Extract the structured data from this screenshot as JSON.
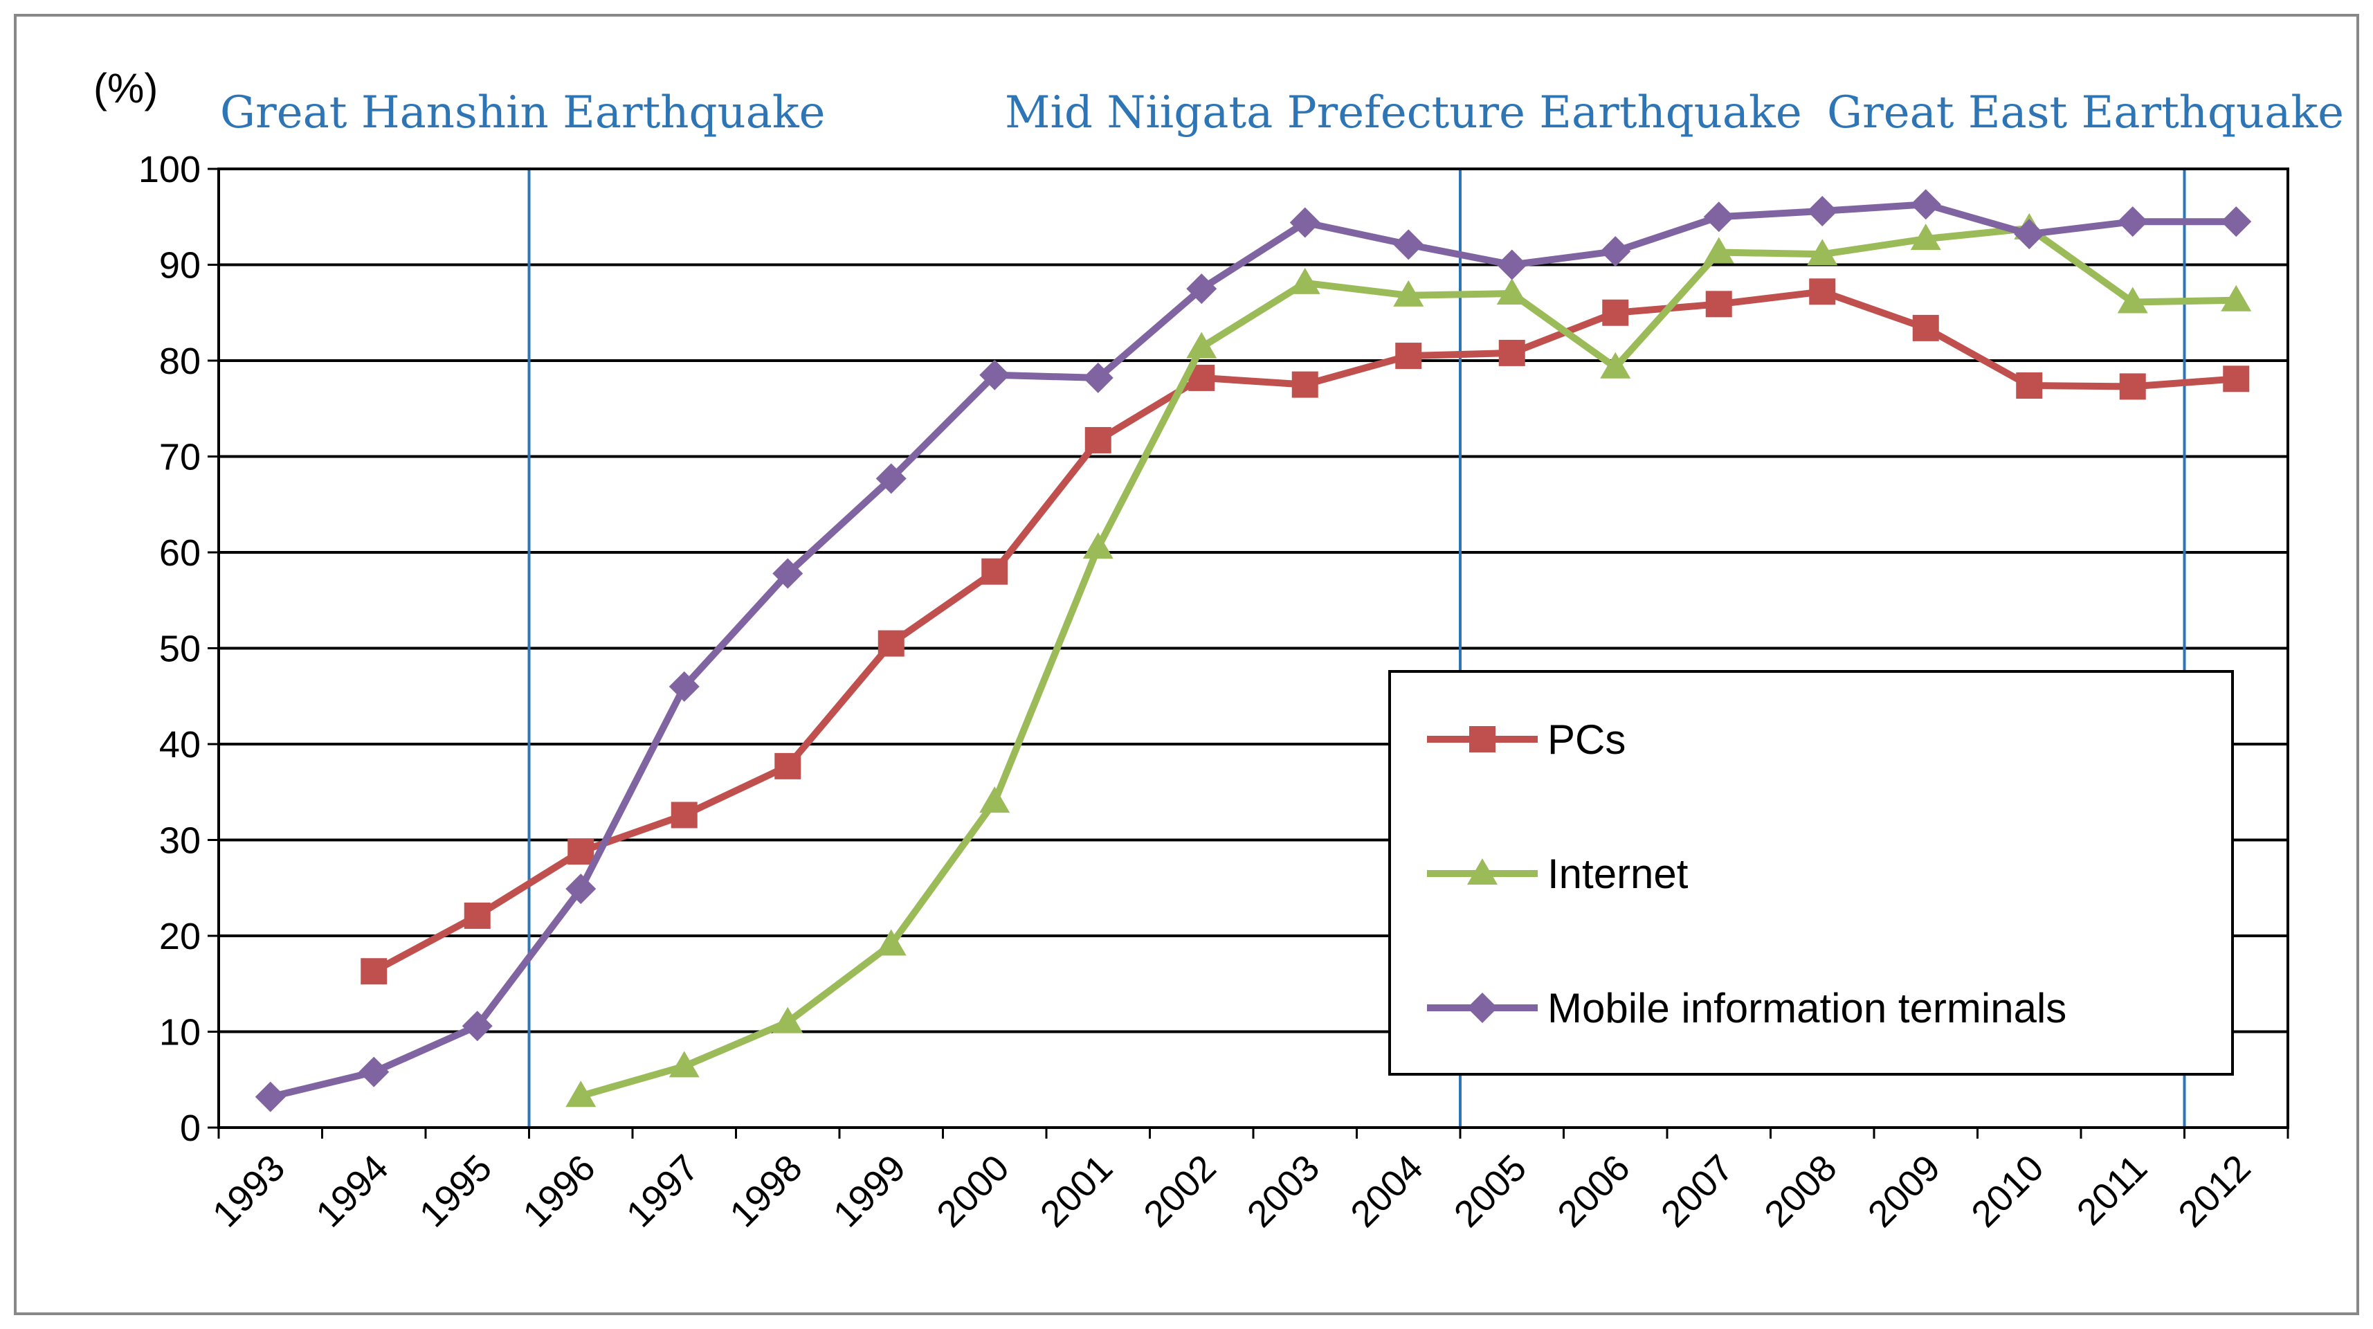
{
  "chart_data": {
    "type": "line",
    "unit_label": "(%)",
    "ylim": [
      0,
      100
    ],
    "yticks": [
      "0",
      "10",
      "20",
      "30",
      "40",
      "50",
      "60",
      "70",
      "80",
      "90",
      "100"
    ],
    "categories": [
      "1993",
      "1994",
      "1995",
      "1996",
      "1997",
      "1998",
      "1999",
      "2000",
      "2001",
      "2002",
      "2003",
      "2004",
      "2005",
      "2006",
      "2007",
      "2008",
      "2009",
      "2010",
      "2011",
      "2012"
    ],
    "events": [
      {
        "label": "Great Hanshin Earthquake",
        "year": "1995"
      },
      {
        "label": "Mid Niigata Prefecture Earthquake",
        "year": "2004"
      },
      {
        "label": "Great East Earthquake",
        "year": "2011"
      }
    ],
    "event_color": "#2E75B6",
    "grid": true,
    "legend_position": "bottom-right",
    "series": [
      {
        "name": "PCs",
        "marker": "square",
        "color": "#C0504D",
        "values": [
          null,
          16.3,
          22.1,
          28.8,
          32.6,
          37.7,
          50.5,
          58.0,
          71.7,
          78.2,
          77.5,
          80.5,
          80.8,
          85.0,
          85.9,
          87.2,
          83.4,
          77.4,
          77.3,
          78.1
        ]
      },
      {
        "name": "Internet",
        "marker": "triangle",
        "color": "#9BBB59",
        "values": [
          null,
          null,
          null,
          3.3,
          6.4,
          11.0,
          19.1,
          34.0,
          60.5,
          81.4,
          88.1,
          86.8,
          87.0,
          79.3,
          91.3,
          91.1,
          92.7,
          93.8,
          86.1,
          86.3
        ]
      },
      {
        "name": "Mobile information terminals",
        "marker": "diamond",
        "color": "#8064A2",
        "values": [
          3.2,
          5.8,
          10.6,
          24.9,
          46.0,
          57.8,
          67.7,
          78.5,
          78.2,
          87.5,
          94.4,
          92.1,
          90.0,
          91.4,
          95.0,
          95.6,
          96.3,
          93.2,
          94.5,
          94.5
        ]
      }
    ]
  }
}
